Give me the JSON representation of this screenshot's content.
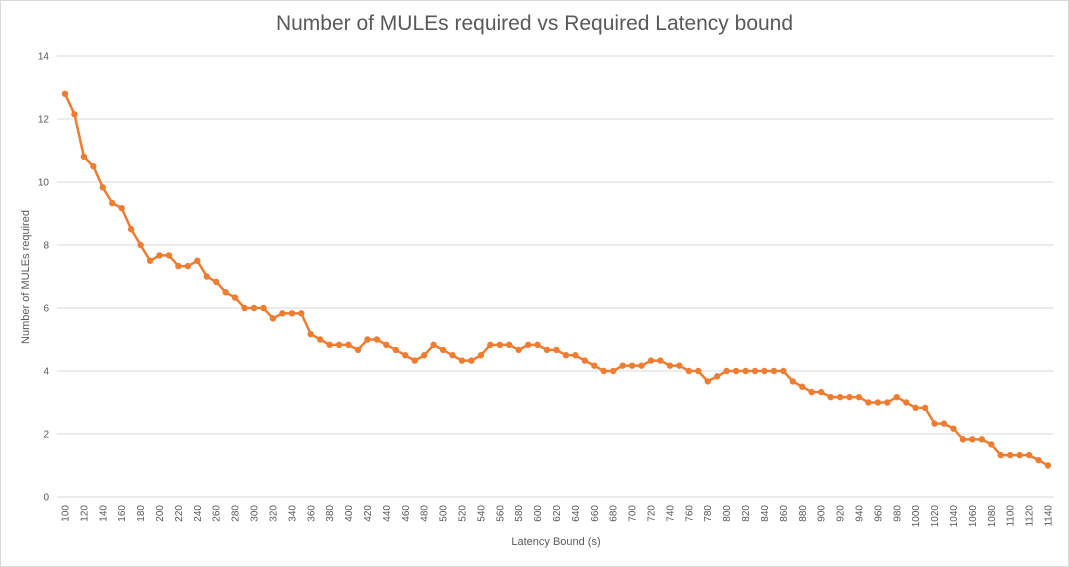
{
  "chart_data": {
    "type": "line",
    "title": "Number of MULEs required vs Required Latency bound",
    "xlabel": "Latency Bound (s)",
    "ylabel": "Number of MULEs required",
    "ylim": [
      0,
      14
    ],
    "yticks": [
      0,
      2,
      4,
      6,
      8,
      10,
      12,
      14
    ],
    "grid": true,
    "legend": "none",
    "line_color": "#ED7D31",
    "x": [
      100,
      110,
      120,
      130,
      140,
      150,
      160,
      170,
      180,
      190,
      200,
      210,
      220,
      230,
      240,
      250,
      260,
      270,
      280,
      290,
      300,
      310,
      320,
      330,
      340,
      350,
      360,
      370,
      380,
      390,
      400,
      410,
      420,
      430,
      440,
      450,
      460,
      470,
      480,
      490,
      500,
      510,
      520,
      530,
      540,
      550,
      560,
      570,
      580,
      590,
      600,
      610,
      620,
      630,
      640,
      650,
      660,
      670,
      680,
      690,
      700,
      710,
      720,
      730,
      740,
      750,
      760,
      770,
      780,
      790,
      800,
      810,
      820,
      830,
      840,
      850,
      860,
      870,
      880,
      890,
      900,
      910,
      920,
      930,
      940,
      950,
      960,
      970,
      980,
      990,
      1000,
      1010,
      1020,
      1030,
      1040,
      1050,
      1060,
      1070,
      1080,
      1090,
      1100,
      1110,
      1120,
      1130,
      1140
    ],
    "x_tick_labels": [
      "100",
      "120",
      "140",
      "160",
      "180",
      "200",
      "220",
      "240",
      "260",
      "280",
      "300",
      "320",
      "340",
      "360",
      "380",
      "400",
      "420",
      "440",
      "460",
      "480",
      "500",
      "520",
      "540",
      "560",
      "580",
      "600",
      "620",
      "640",
      "660",
      "680",
      "700",
      "720",
      "740",
      "760",
      "780",
      "800",
      "820",
      "840",
      "860",
      "880",
      "900",
      "920",
      "940",
      "960",
      "980",
      "1000",
      "1020",
      "1040",
      "1060",
      "1080",
      "1100",
      "1120",
      "1140"
    ],
    "series": [
      {
        "values": [
          12.8,
          12.15,
          10.8,
          10.5,
          9.83,
          9.33,
          9.17,
          8.5,
          8.0,
          7.5,
          7.67,
          7.67,
          7.33,
          7.33,
          7.5,
          7.0,
          6.83,
          6.5,
          6.33,
          6.0,
          6.0,
          6.0,
          5.67,
          5.83,
          5.83,
          5.83,
          5.17,
          5.0,
          4.83,
          4.83,
          4.83,
          4.67,
          5.0,
          5.0,
          4.83,
          4.67,
          4.5,
          4.33,
          4.5,
          4.83,
          4.67,
          4.5,
          4.33,
          4.33,
          4.5,
          4.83,
          4.83,
          4.83,
          4.67,
          4.83,
          4.83,
          4.67,
          4.67,
          4.5,
          4.5,
          4.33,
          4.17,
          4.0,
          4.0,
          4.17,
          4.17,
          4.17,
          4.33,
          4.33,
          4.17,
          4.17,
          4.0,
          4.0,
          3.67,
          3.83,
          4.0,
          4.0,
          4.0,
          4.0,
          4.0,
          4.0,
          4.0,
          3.67,
          3.5,
          3.33,
          3.33,
          3.17,
          3.17,
          3.17,
          3.17,
          3.0,
          3.0,
          3.0,
          3.17,
          3.0,
          2.83,
          2.83,
          2.33,
          2.33,
          2.17,
          1.83,
          1.83,
          1.83,
          1.67,
          1.33,
          1.33,
          1.33,
          1.33,
          1.17,
          1.0
        ]
      }
    ]
  }
}
